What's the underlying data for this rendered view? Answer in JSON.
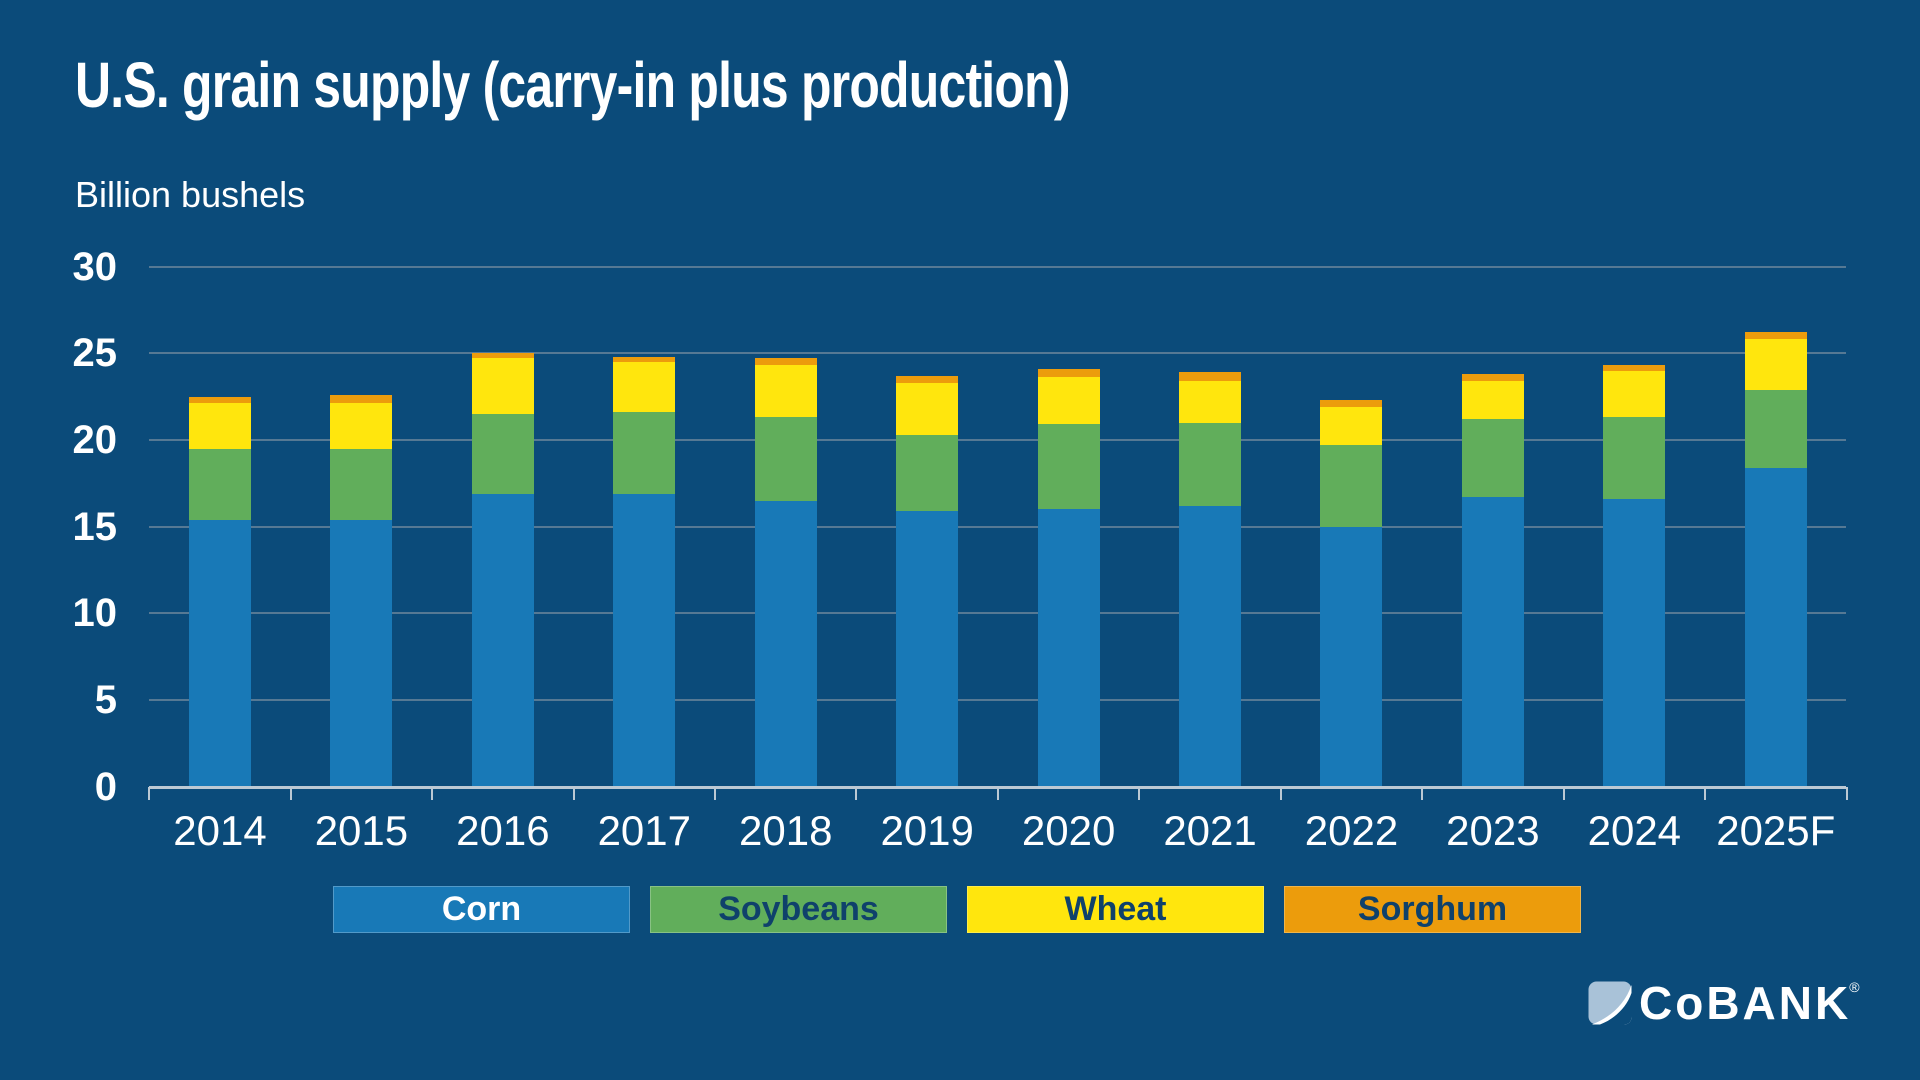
{
  "page": {
    "background": "#0B4B7A"
  },
  "header": {
    "title": "U.S. grain supply (carry-in plus production)",
    "unit_label": "Billion bushels"
  },
  "chart_data": {
    "type": "bar",
    "stacked": true,
    "title": "U.S. grain supply (carry-in plus production)",
    "ylabel": "Billion bushels",
    "xlabel": "",
    "categories": [
      "2014",
      "2015",
      "2016",
      "2017",
      "2018",
      "2019",
      "2020",
      "2021",
      "2022",
      "2023",
      "2024",
      "2025F"
    ],
    "series": [
      {
        "name": "Corn",
        "color": "#1879B7",
        "legend_text_color": "#FFFFFF",
        "values": [
          15.4,
          15.4,
          16.9,
          16.9,
          16.5,
          15.9,
          16.0,
          16.2,
          15.0,
          16.7,
          16.6,
          18.4
        ]
      },
      {
        "name": "Soybeans",
        "color": "#61AE5B",
        "legend_text_color": "#0F416B",
        "values": [
          4.1,
          4.1,
          4.6,
          4.7,
          4.8,
          4.4,
          4.9,
          4.8,
          4.7,
          4.5,
          4.7,
          4.5
        ]
      },
      {
        "name": "Wheat",
        "color": "#FFE60D",
        "legend_text_color": "#0F416B",
        "values": [
          2.6,
          2.6,
          3.2,
          2.9,
          3.0,
          3.0,
          2.7,
          2.4,
          2.2,
          2.2,
          2.7,
          2.9
        ]
      },
      {
        "name": "Sorghum",
        "color": "#EC9C0C",
        "legend_text_color": "#0F416B",
        "values": [
          0.4,
          0.5,
          0.3,
          0.3,
          0.4,
          0.4,
          0.5,
          0.5,
          0.4,
          0.4,
          0.3,
          0.4
        ]
      }
    ],
    "totals": [
      22.5,
      22.6,
      25.0,
      24.8,
      24.7,
      23.7,
      24.1,
      23.9,
      22.3,
      23.8,
      24.3,
      26.2
    ],
    "ylim": [
      0,
      30
    ],
    "yticks": [
      0,
      5,
      10,
      15,
      20,
      25,
      30
    ],
    "grid": true,
    "legend_position": "bottom"
  },
  "colors": {
    "background": "#0B4B7A",
    "gridline": "rgba(150,160,170,0.55)",
    "axis": "#BCC9D4",
    "text": "#FFFFFF"
  },
  "logo": {
    "text": "CoBANK",
    "registered_mark": "®"
  }
}
